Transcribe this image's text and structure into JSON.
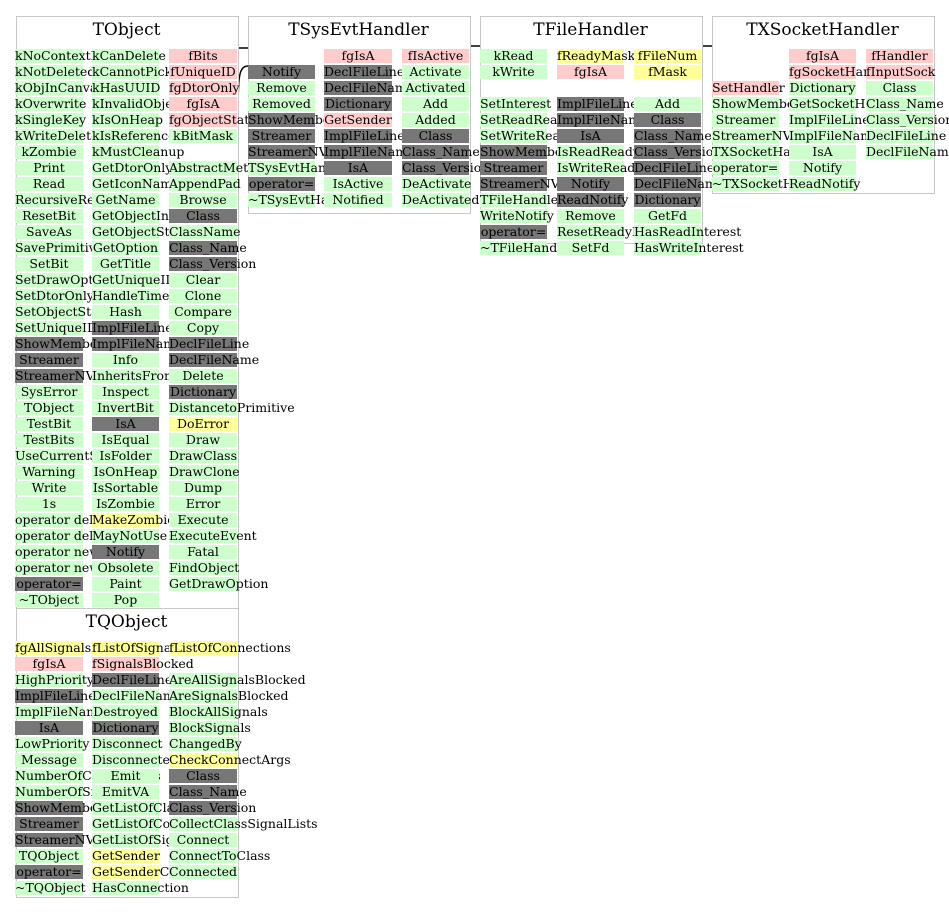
{
  "classes": [
    {
      "title": "TObject",
      "columns": [
        [
          {
            "t": "kNoContextMenu",
            "c": "g"
          },
          {
            "t": "kNotDeleted",
            "c": "g"
          },
          {
            "t": "kObjInCanvas",
            "c": "g"
          },
          {
            "t": "kOverwrite",
            "c": "g"
          },
          {
            "t": "kSingleKey",
            "c": "g"
          },
          {
            "t": "kWriteDelete",
            "c": "g"
          },
          {
            "t": "kZombie",
            "c": "g"
          },
          {
            "t": "Print",
            "c": "g"
          },
          {
            "t": "Read",
            "c": "g"
          },
          {
            "t": "RecursiveRemove",
            "c": "g"
          },
          {
            "t": "ResetBit",
            "c": "g"
          },
          {
            "t": "SaveAs",
            "c": "g"
          },
          {
            "t": "SavePrimitive",
            "c": "g"
          },
          {
            "t": "SetBit",
            "c": "g"
          },
          {
            "t": "SetDrawOption",
            "c": "g"
          },
          {
            "t": "SetDtorOnly",
            "c": "g"
          },
          {
            "t": "SetObjectStat",
            "c": "g"
          },
          {
            "t": "SetUniqueID",
            "c": "g"
          },
          {
            "t": "ShowMembers",
            "c": "d"
          },
          {
            "t": "Streamer",
            "c": "d"
          },
          {
            "t": "StreamerNVirtual",
            "c": "d"
          },
          {
            "t": "SysError",
            "c": "g"
          },
          {
            "t": "TObject",
            "c": "g"
          },
          {
            "t": "TestBit",
            "c": "g"
          },
          {
            "t": "TestBits",
            "c": "g"
          },
          {
            "t": "UseCurrentStyle",
            "c": "g"
          },
          {
            "t": "Warning",
            "c": "g"
          },
          {
            "t": "Write",
            "c": "g"
          },
          {
            "t": "1s",
            "c": "g"
          },
          {
            "t": "operator delete",
            "c": "g"
          },
          {
            "t": "operator delete[]",
            "c": "g"
          },
          {
            "t": "operator new",
            "c": "g"
          },
          {
            "t": "operator new[]",
            "c": "g"
          },
          {
            "t": "operator=",
            "c": "d"
          },
          {
            "t": "~TObject",
            "c": "g"
          }
        ],
        [
          {
            "t": "kCanDelete",
            "c": "g"
          },
          {
            "t": "kCannotPick",
            "c": "g"
          },
          {
            "t": "kHasUUID",
            "c": "g"
          },
          {
            "t": "kInvalidObject",
            "c": "g"
          },
          {
            "t": "kIsOnHeap",
            "c": "g"
          },
          {
            "t": "kIsReferenced",
            "c": "g"
          },
          {
            "t": "kMustCleanup",
            "c": "g"
          },
          {
            "t": "GetDtorOnly",
            "c": "g"
          },
          {
            "t": "GetIconName",
            "c": "g"
          },
          {
            "t": "GetName",
            "c": "g"
          },
          {
            "t": "GetObjectInfo",
            "c": "g"
          },
          {
            "t": "GetObjectStat",
            "c": "g"
          },
          {
            "t": "GetOption",
            "c": "g"
          },
          {
            "t": "GetTitle",
            "c": "g"
          },
          {
            "t": "GetUniqueID",
            "c": "g"
          },
          {
            "t": "HandleTimer",
            "c": "g"
          },
          {
            "t": "Hash",
            "c": "g"
          },
          {
            "t": "ImplFileLine",
            "c": "d"
          },
          {
            "t": "ImplFileName",
            "c": "d"
          },
          {
            "t": "Info",
            "c": "g"
          },
          {
            "t": "InheritsFrom",
            "c": "g"
          },
          {
            "t": "Inspect",
            "c": "g"
          },
          {
            "t": "InvertBit",
            "c": "g"
          },
          {
            "t": "IsA",
            "c": "d"
          },
          {
            "t": "IsEqual",
            "c": "g"
          },
          {
            "t": "IsFolder",
            "c": "g"
          },
          {
            "t": "IsOnHeap",
            "c": "g"
          },
          {
            "t": "IsSortable",
            "c": "g"
          },
          {
            "t": "IsZombie",
            "c": "g"
          },
          {
            "t": "MakeZombie",
            "c": "y"
          },
          {
            "t": "MayNotUse",
            "c": "g"
          },
          {
            "t": "Notify",
            "c": "d"
          },
          {
            "t": "Obsolete",
            "c": "g"
          },
          {
            "t": "Paint",
            "c": "g"
          },
          {
            "t": "Pop",
            "c": "g"
          }
        ],
        [
          {
            "t": "fBits",
            "c": "p"
          },
          {
            "t": "fUniqueID",
            "c": "p"
          },
          {
            "t": "fgDtorOnly",
            "c": "p"
          },
          {
            "t": "fgIsA",
            "c": "p"
          },
          {
            "t": "fgObjectStat",
            "c": "p"
          },
          {
            "t": "kBitMask",
            "c": "g"
          },
          {
            "t": "",
            "c": "s"
          },
          {
            "t": "AbstractMethod",
            "c": "g"
          },
          {
            "t": "AppendPad",
            "c": "g"
          },
          {
            "t": "Browse",
            "c": "g"
          },
          {
            "t": "Class",
            "c": "d"
          },
          {
            "t": "ClassName",
            "c": "g"
          },
          {
            "t": "Class_Name",
            "c": "d"
          },
          {
            "t": "Class_Version",
            "c": "d"
          },
          {
            "t": "Clear",
            "c": "g"
          },
          {
            "t": "Clone",
            "c": "g"
          },
          {
            "t": "Compare",
            "c": "g"
          },
          {
            "t": "Copy",
            "c": "g"
          },
          {
            "t": "DeclFileLine",
            "c": "d"
          },
          {
            "t": "DeclFileName",
            "c": "d"
          },
          {
            "t": "Delete",
            "c": "g"
          },
          {
            "t": "Dictionary",
            "c": "d"
          },
          {
            "t": "DistancetoPrimitive",
            "c": "g"
          },
          {
            "t": "DoError",
            "c": "y"
          },
          {
            "t": "Draw",
            "c": "g"
          },
          {
            "t": "DrawClass",
            "c": "g"
          },
          {
            "t": "DrawClone",
            "c": "g"
          },
          {
            "t": "Dump",
            "c": "g"
          },
          {
            "t": "Error",
            "c": "g"
          },
          {
            "t": "Execute",
            "c": "g"
          },
          {
            "t": "ExecuteEvent",
            "c": "g"
          },
          {
            "t": "Fatal",
            "c": "g"
          },
          {
            "t": "FindObject",
            "c": "g"
          },
          {
            "t": "GetDrawOption",
            "c": "g"
          }
        ]
      ]
    },
    {
      "title": "TSysEvtHandler",
      "columns": [
        [
          {
            "t": "",
            "c": "s"
          },
          {
            "t": "Notify",
            "c": "d"
          },
          {
            "t": "Remove",
            "c": "g"
          },
          {
            "t": "Removed",
            "c": "g"
          },
          {
            "t": "ShowMembers",
            "c": "d"
          },
          {
            "t": "Streamer",
            "c": "d"
          },
          {
            "t": "StreamerNVirtual",
            "c": "d"
          },
          {
            "t": "TSysEvtHandler",
            "c": "g"
          },
          {
            "t": "operator=",
            "c": "d"
          },
          {
            "t": "~TSysEvtHandler",
            "c": "g"
          }
        ],
        [
          {
            "t": "fgIsA",
            "c": "p"
          },
          {
            "t": "DeclFileLine",
            "c": "d"
          },
          {
            "t": "DeclFileName",
            "c": "d"
          },
          {
            "t": "Dictionary",
            "c": "d"
          },
          {
            "t": "GetSender",
            "c": "p"
          },
          {
            "t": "ImplFileLine",
            "c": "d"
          },
          {
            "t": "ImplFileName",
            "c": "d"
          },
          {
            "t": "IsA",
            "c": "d"
          },
          {
            "t": "IsActive",
            "c": "g"
          },
          {
            "t": "Notified",
            "c": "g"
          }
        ],
        [
          {
            "t": "fIsActive",
            "c": "p"
          },
          {
            "t": "Activate",
            "c": "g"
          },
          {
            "t": "Activated",
            "c": "g"
          },
          {
            "t": "Add",
            "c": "g"
          },
          {
            "t": "Added",
            "c": "g"
          },
          {
            "t": "Class",
            "c": "d"
          },
          {
            "t": "Class_Name",
            "c": "d"
          },
          {
            "t": "Class_Version",
            "c": "d"
          },
          {
            "t": "DeActivate",
            "c": "g"
          },
          {
            "t": "DeActivated",
            "c": "g"
          }
        ]
      ]
    },
    {
      "title": "TFileHandler",
      "columns": [
        [
          {
            "t": "kRead",
            "c": "g"
          },
          {
            "t": "kWrite",
            "c": "g"
          },
          {
            "t": "",
            "c": "s"
          },
          {
            "t": "SetInterest",
            "c": "g"
          },
          {
            "t": "SetReadReady",
            "c": "g"
          },
          {
            "t": "SetWriteReady",
            "c": "g"
          },
          {
            "t": "ShowMembers",
            "c": "d"
          },
          {
            "t": "Streamer",
            "c": "d"
          },
          {
            "t": "StreamerNVirtual",
            "c": "d"
          },
          {
            "t": "TFileHandler",
            "c": "g"
          },
          {
            "t": "WriteNotify",
            "c": "g"
          },
          {
            "t": "operator=",
            "c": "d"
          },
          {
            "t": "~TFileHandler",
            "c": "g"
          }
        ],
        [
          {
            "t": "fReadyMask",
            "c": "y"
          },
          {
            "t": "fgIsA",
            "c": "p"
          },
          {
            "t": "",
            "c": "s"
          },
          {
            "t": "ImplFileLine",
            "c": "d"
          },
          {
            "t": "ImplFileName",
            "c": "d"
          },
          {
            "t": "IsA",
            "c": "d"
          },
          {
            "t": "IsReadReady",
            "c": "g"
          },
          {
            "t": "IsWriteReady",
            "c": "g"
          },
          {
            "t": "Notify",
            "c": "d"
          },
          {
            "t": "ReadNotify",
            "c": "d"
          },
          {
            "t": "Remove",
            "c": "g"
          },
          {
            "t": "ResetReadyMask",
            "c": "g"
          },
          {
            "t": "SetFd",
            "c": "g"
          }
        ],
        [
          {
            "t": "fFileNum",
            "c": "y"
          },
          {
            "t": "fMask",
            "c": "y"
          },
          {
            "t": "",
            "c": "s"
          },
          {
            "t": "Add",
            "c": "g"
          },
          {
            "t": "Class",
            "c": "d"
          },
          {
            "t": "Class_Name",
            "c": "d"
          },
          {
            "t": "Class_Version",
            "c": "d"
          },
          {
            "t": "DeclFileLine",
            "c": "d"
          },
          {
            "t": "DeclFileName",
            "c": "d"
          },
          {
            "t": "Dictionary",
            "c": "d"
          },
          {
            "t": "GetFd",
            "c": "g"
          },
          {
            "t": "HasReadInterest",
            "c": "g"
          },
          {
            "t": "HasWriteInterest",
            "c": "g"
          }
        ]
      ]
    },
    {
      "title": "TXSocketHandler",
      "columns": [
        [
          {
            "t": "",
            "c": "s"
          },
          {
            "t": "",
            "c": "s"
          },
          {
            "t": "SetHandler",
            "c": "p"
          },
          {
            "t": "ShowMembers",
            "c": "g"
          },
          {
            "t": "Streamer",
            "c": "g"
          },
          {
            "t": "StreamerNVirtual",
            "c": "g"
          },
          {
            "t": "TXSocketHandler",
            "c": "g"
          },
          {
            "t": "operator=",
            "c": "g"
          },
          {
            "t": "~TXSocketHandler",
            "c": "g"
          }
        ],
        [
          {
            "t": "fgIsA",
            "c": "p"
          },
          {
            "t": "fgSocketHandler",
            "c": "p"
          },
          {
            "t": "Dictionary",
            "c": "g"
          },
          {
            "t": "GetSocketHandler",
            "c": "g"
          },
          {
            "t": "ImplFileLine",
            "c": "g"
          },
          {
            "t": "ImplFileName",
            "c": "g"
          },
          {
            "t": "IsA",
            "c": "g"
          },
          {
            "t": "Notify",
            "c": "g"
          },
          {
            "t": "ReadNotify",
            "c": "g"
          }
        ],
        [
          {
            "t": "fHandler",
            "c": "p"
          },
          {
            "t": "fInputSock",
            "c": "p"
          },
          {
            "t": "Class",
            "c": "g"
          },
          {
            "t": "Class_Name",
            "c": "g"
          },
          {
            "t": "Class_Version",
            "c": "g"
          },
          {
            "t": "DeclFileLine",
            "c": "g"
          },
          {
            "t": "DeclFileName",
            "c": "g"
          }
        ]
      ]
    },
    {
      "title": "TQObject",
      "columns": [
        [
          {
            "t": "fgAllSignalsBlocked",
            "c": "y"
          },
          {
            "t": "fgIsA",
            "c": "p"
          },
          {
            "t": "HighPriority",
            "c": "g"
          },
          {
            "t": "ImplFileLine",
            "c": "d"
          },
          {
            "t": "ImplFileName",
            "c": "g"
          },
          {
            "t": "IsA",
            "c": "d"
          },
          {
            "t": "LowPriority",
            "c": "g"
          },
          {
            "t": "Message",
            "c": "g"
          },
          {
            "t": "NumberOfConnections",
            "c": "g"
          },
          {
            "t": "NumberOfSignals",
            "c": "g"
          },
          {
            "t": "ShowMembers",
            "c": "d"
          },
          {
            "t": "Streamer",
            "c": "d"
          },
          {
            "t": "StreamerNVirtual",
            "c": "d"
          },
          {
            "t": "TQObject",
            "c": "g"
          },
          {
            "t": "operator=",
            "c": "d"
          },
          {
            "t": "~TQObject",
            "c": "g"
          }
        ],
        [
          {
            "t": "fListOfSignals",
            "c": "y"
          },
          {
            "t": "fSignalsBlocked",
            "c": "p"
          },
          {
            "t": "DeclFileLine",
            "c": "d"
          },
          {
            "t": "DeclFileName",
            "c": "g"
          },
          {
            "t": "Destroyed",
            "c": "g"
          },
          {
            "t": "Dictionary",
            "c": "d"
          },
          {
            "t": "Disconnect",
            "c": "g"
          },
          {
            "t": "Disconnected",
            "c": "g"
          },
          {
            "t": "Emit",
            "c": "g"
          },
          {
            "t": "EmitVA",
            "c": "g"
          },
          {
            "t": "GetListOfClassSignals",
            "c": "g"
          },
          {
            "t": "GetListOfConnections",
            "c": "g"
          },
          {
            "t": "GetListOfSignals",
            "c": "g"
          },
          {
            "t": "GetSender",
            "c": "y"
          },
          {
            "t": "GetSenderClassName",
            "c": "y"
          },
          {
            "t": "HasConnection",
            "c": "g"
          }
        ],
        [
          {
            "t": "fListOfConnections",
            "c": "y"
          },
          {
            "t": "",
            "c": "s"
          },
          {
            "t": "AreAllSignalsBlocked",
            "c": "g"
          },
          {
            "t": "AreSignalsBlocked",
            "c": "g"
          },
          {
            "t": "BlockAllSignals",
            "c": "g"
          },
          {
            "t": "BlockSignals",
            "c": "g"
          },
          {
            "t": "ChangedBy",
            "c": "g"
          },
          {
            "t": "CheckConnectArgs",
            "c": "y"
          },
          {
            "t": "Class",
            "c": "d"
          },
          {
            "t": "Class_Name",
            "c": "d"
          },
          {
            "t": "Class_Version",
            "c": "d"
          },
          {
            "t": "CollectClassSignalLists",
            "c": "g"
          },
          {
            "t": "Connect",
            "c": "g"
          },
          {
            "t": "ConnectToClass",
            "c": "g"
          },
          {
            "t": "Connected",
            "c": "g"
          }
        ]
      ]
    }
  ]
}
